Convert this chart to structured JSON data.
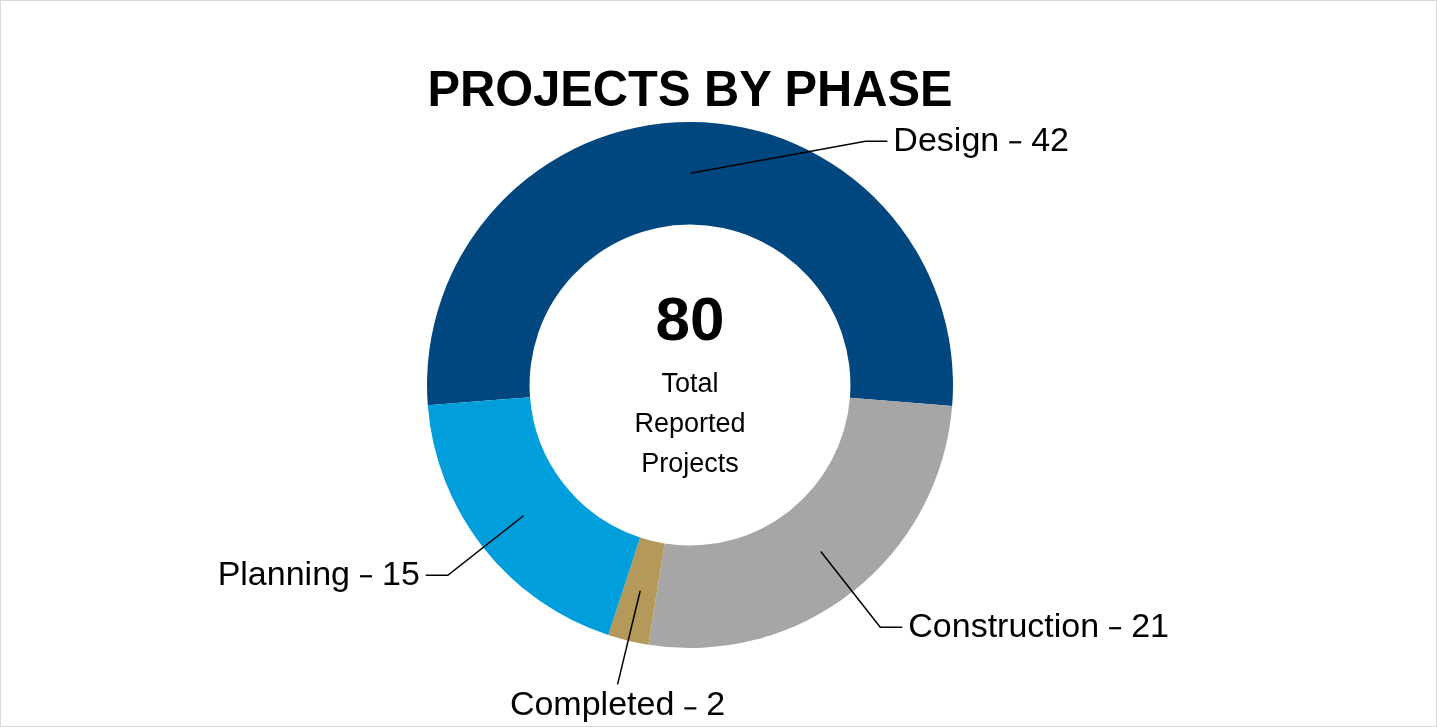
{
  "chart_data": {
    "type": "donut",
    "title": "PROJECTS BY PHASE",
    "categories": [
      "Design",
      "Construction",
      "Completed",
      "Planning"
    ],
    "values": [
      42,
      21,
      2,
      15
    ],
    "colors": [
      "#00467f",
      "#a6a6a6",
      "#b5995a",
      "#009fdc"
    ],
    "data_labels": true,
    "annotations": [
      "80",
      "Total Reported Projects"
    ],
    "legend": false
  }
}
